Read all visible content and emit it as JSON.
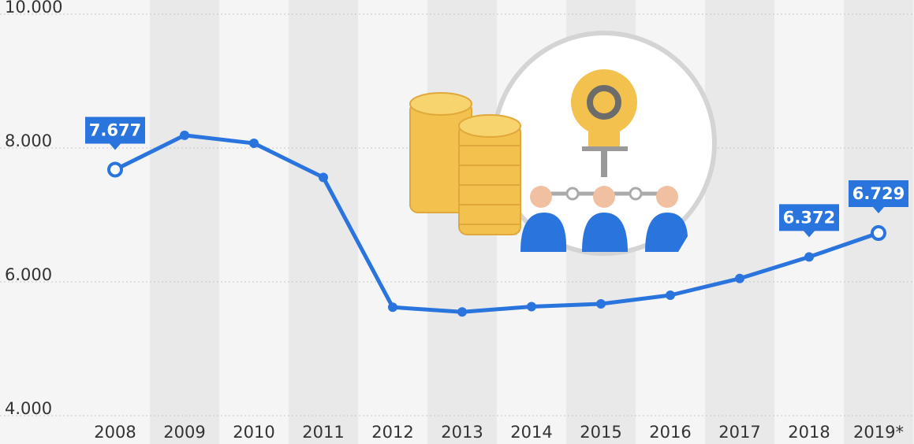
{
  "chart_data": {
    "type": "line",
    "categories": [
      "2008",
      "2009",
      "2010",
      "2011",
      "2012",
      "2013",
      "2014",
      "2015",
      "2016",
      "2017",
      "2018",
      "2019*"
    ],
    "series": [
      {
        "color": "#2a74de",
        "values": [
          7677,
          8190,
          8070,
          7560,
          5620,
          5550,
          5630,
          5670,
          5800,
          6050,
          6372,
          6729
        ],
        "value_labels": [
          "7.677",
          null,
          null,
          null,
          null,
          null,
          null,
          null,
          null,
          null,
          "6.372",
          "6.729"
        ]
      }
    ],
    "ylim": [
      4000,
      10000
    ],
    "yticks": [
      {
        "value": 4000,
        "label": "4.000"
      },
      {
        "value": 6000,
        "label": "6.000"
      },
      {
        "value": 8000,
        "label": "8.000"
      },
      {
        "value": 10000,
        "label": "10.000"
      }
    ],
    "grid": true
  }
}
